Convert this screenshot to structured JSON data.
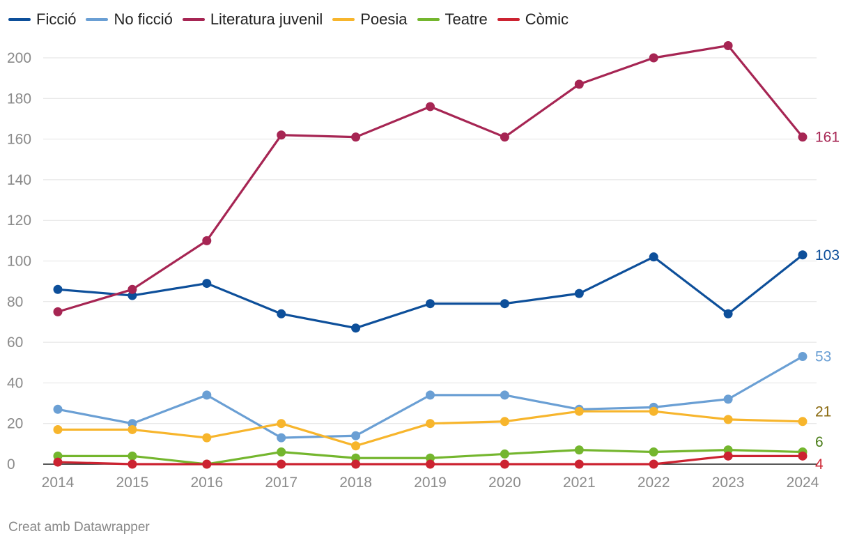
{
  "chart_data": {
    "type": "line",
    "title": "",
    "xlabel": "",
    "ylabel": "",
    "x": [
      2014,
      2015,
      2016,
      2017,
      2018,
      2019,
      2020,
      2021,
      2022,
      2023,
      2024
    ],
    "ylim": [
      0,
      210
    ],
    "yticks": [
      0,
      20,
      40,
      60,
      80,
      100,
      120,
      140,
      160,
      180,
      200
    ],
    "grid": true,
    "legend_position": "top-left",
    "series": [
      {
        "name": "Ficció",
        "color": "#0d4f9a",
        "values": [
          86,
          83,
          89,
          74,
          67,
          79,
          79,
          84,
          102,
          74,
          103
        ],
        "end_label": "103"
      },
      {
        "name": "No ficció",
        "color": "#6a9fd4",
        "values": [
          27,
          20,
          34,
          13,
          14,
          34,
          34,
          27,
          28,
          32,
          53
        ],
        "end_label": "53"
      },
      {
        "name": "Literatura juvenil",
        "color": "#a62553",
        "values": [
          75,
          86,
          110,
          162,
          161,
          176,
          161,
          187,
          200,
          206,
          161
        ],
        "end_label": "161"
      },
      {
        "name": "Poesia",
        "color": "#f7b52c",
        "values": [
          17,
          17,
          13,
          20,
          9,
          20,
          21,
          26,
          26,
          22,
          21
        ],
        "end_label": "21",
        "label_color": "#8a6a10"
      },
      {
        "name": "Teatre",
        "color": "#74b62e",
        "values": [
          4,
          4,
          0,
          6,
          3,
          3,
          5,
          7,
          6,
          7,
          6
        ],
        "end_label": "6",
        "label_color": "#4a7d18"
      },
      {
        "name": "Còmic",
        "color": "#cc2331",
        "values": [
          1,
          0,
          0,
          0,
          0,
          0,
          0,
          0,
          0,
          4,
          4
        ],
        "end_label": "4"
      }
    ]
  },
  "footer": {
    "credit": "Creat amb Datawrapper"
  }
}
